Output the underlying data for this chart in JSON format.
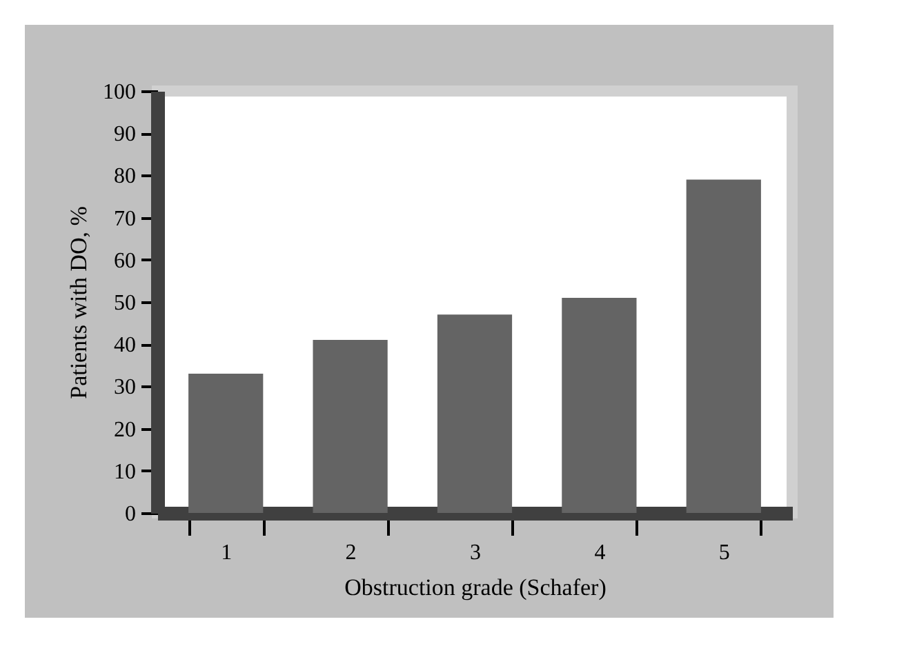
{
  "chart_data": {
    "type": "bar",
    "xlabel": "Obstruction grade (Schafer)",
    "ylabel": "Patients with DO, %",
    "categories": [
      "1",
      "2",
      "3",
      "4",
      "5"
    ],
    "values": [
      33,
      41,
      47,
      51,
      79
    ],
    "color": "#646464",
    "ylim": [
      0,
      100
    ],
    "yticks": [
      0,
      10,
      20,
      30,
      40,
      50,
      60,
      70,
      80,
      90,
      100
    ],
    "grid": false
  }
}
